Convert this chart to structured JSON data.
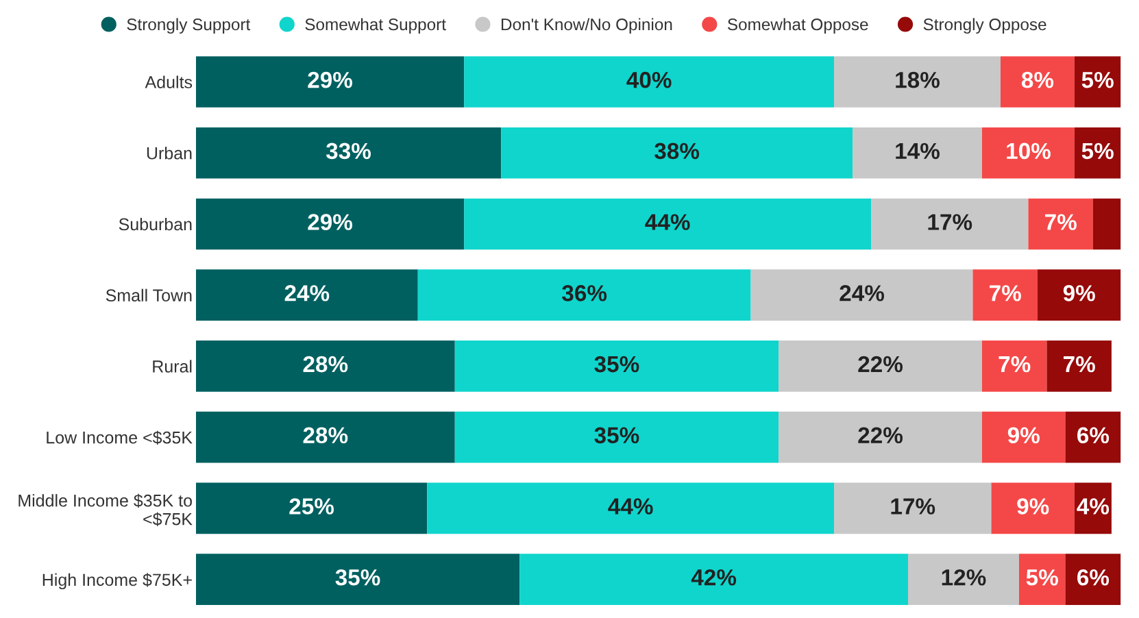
{
  "chart_data": {
    "type": "bar",
    "orientation": "horizontal",
    "stacked": true,
    "legend": "top",
    "xlim": [
      0,
      100
    ],
    "tick_labels": "y",
    "grid": false,
    "categories": [
      "Adults",
      "Urban",
      "Suburban",
      "Small Town",
      "Rural",
      "Low Income <$35K",
      "Middle Income $35K to\n<$75K",
      "High Income $75K+"
    ],
    "series": [
      {
        "name": "Strongly Support",
        "color": "#006060",
        "values": [
          29,
          33,
          29,
          24,
          28,
          28,
          25,
          35
        ],
        "value_labels": [
          "29%",
          "33%",
          "29%",
          "24%",
          "28%",
          "28%",
          "25%",
          "35%"
        ]
      },
      {
        "name": "Somewhat Support",
        "color": "#10d5cc",
        "values": [
          40,
          38,
          44,
          36,
          35,
          35,
          44,
          42
        ],
        "value_labels": [
          "40%",
          "38%",
          "44%",
          "36%",
          "35%",
          "35%",
          "44%",
          "42%"
        ]
      },
      {
        "name": "Don't Know/No Opinion",
        "color": "#c8c8c8",
        "values": [
          18,
          14,
          17,
          24,
          22,
          22,
          17,
          12
        ],
        "value_labels": [
          "18%",
          "14%",
          "17%",
          "24%",
          "22%",
          "22%",
          "17%",
          "12%"
        ]
      },
      {
        "name": "Somewhat Oppose",
        "color": "#f44848",
        "values": [
          8,
          10,
          7,
          7,
          7,
          9,
          9,
          5
        ],
        "value_labels": [
          "8%",
          "10%",
          "7%",
          "7%",
          "7%",
          "9%",
          "9%",
          "5%"
        ]
      },
      {
        "name": "Strongly Oppose",
        "color": "#960a0a",
        "values": [
          5,
          5,
          3,
          9,
          7,
          6,
          4,
          6
        ],
        "value_labels": [
          "5%",
          "5%",
          null,
          "9%",
          "7%",
          "6%",
          "4%",
          "6%"
        ]
      }
    ]
  }
}
